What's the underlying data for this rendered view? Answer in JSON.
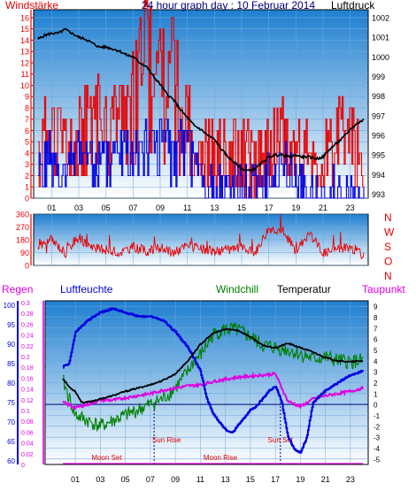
{
  "colors": {
    "red": "#e80000",
    "blue": "#0000e0",
    "green": "#008000",
    "magenta": "#e000e0",
    "black": "#000000",
    "navy": "#000080",
    "bg_top": "#1e7fd0",
    "bg_bottom": "#ffffff"
  },
  "chart_data": [
    {
      "type": "line",
      "panel": "wind-pressure",
      "title": "24 hour graph day : 10 Februar 2014",
      "left_label": "Windstärke",
      "right_label": "Luftdruck",
      "x_ticks": [
        "01",
        "03",
        "05",
        "07",
        "09",
        "11",
        "13",
        "15",
        "17",
        "19",
        "21",
        "23"
      ],
      "left_ticks": [
        "0",
        "1",
        "2",
        "3",
        "4",
        "5",
        "6",
        "7",
        "8",
        "9",
        "10",
        "11",
        "12",
        "13",
        "14",
        "15",
        "16"
      ],
      "left_range": [
        0,
        16.7
      ],
      "right_ticks": [
        "993",
        "994",
        "995",
        "996",
        "997",
        "998",
        "999",
        "1000",
        "1001",
        "1002"
      ],
      "right_range": [
        992.8,
        1002.4
      ],
      "grid": true,
      "series": [
        {
          "role": "pressure",
          "color": "black",
          "x": [
            0,
            0.5,
            1,
            1.5,
            2,
            2.5,
            3,
            3.5,
            4,
            4.5,
            5,
            5.5,
            6,
            6.5,
            7,
            7.5,
            8,
            8.5,
            9,
            9.5,
            10,
            10.5,
            11,
            11.5,
            12,
            12.5,
            13,
            13.5,
            14,
            14.5,
            15,
            15.5,
            16,
            16.5,
            17,
            17.5,
            18,
            18.5,
            19,
            19.5,
            20,
            20.5,
            21,
            21.5,
            22,
            22.5,
            23,
            23.5,
            24
          ],
          "y": [
            1000.9,
            1001.1,
            1001.2,
            1001.2,
            1001.4,
            1001.2,
            1001.0,
            1000.9,
            1000.7,
            1000.5,
            1000.5,
            1000.4,
            1000.3,
            1000.1,
            1000.0,
            999.7,
            999.5,
            999.0,
            998.6,
            998.1,
            997.8,
            997.3,
            996.9,
            996.5,
            996.3,
            996.0,
            995.8,
            995.3,
            994.9,
            994.6,
            994.3,
            994.2,
            994.3,
            994.6,
            994.9,
            995.0,
            995.0,
            994.9,
            995.0,
            994.9,
            994.9,
            994.8,
            994.9,
            995.3,
            995.6,
            995.9,
            996.3,
            996.6,
            996.8
          ]
        },
        {
          "role": "gust",
          "color": "red",
          "x": [
            0,
            1,
            2,
            3,
            4,
            5,
            6,
            7,
            7.5,
            8,
            8.5,
            9,
            9.5,
            10,
            10.5,
            11,
            11.5,
            12,
            13,
            14,
            15,
            16,
            17,
            18,
            19,
            20,
            21,
            22,
            23,
            24
          ],
          "y": [
            4,
            7,
            5,
            6,
            9,
            7,
            8,
            10,
            13,
            16,
            11,
            13,
            9,
            15,
            6,
            8,
            5,
            5,
            3,
            4,
            4,
            3,
            4,
            7,
            5,
            3,
            4,
            5,
            6,
            2
          ]
        },
        {
          "role": "wind",
          "color": "blue",
          "x": [
            0,
            1,
            2,
            3,
            4,
            5,
            6,
            7,
            8,
            9,
            10,
            11,
            12,
            13,
            14,
            15,
            16,
            17,
            18,
            19,
            20,
            21,
            22,
            23,
            24
          ],
          "y": [
            3,
            4,
            2,
            5,
            3,
            4,
            5,
            6,
            5,
            6,
            4,
            6,
            2,
            1,
            2,
            1,
            1,
            2,
            3,
            2,
            1,
            0,
            1,
            1,
            0
          ]
        }
      ]
    },
    {
      "type": "line",
      "panel": "wind-direction",
      "left_ticks": [
        "0",
        "90",
        "180",
        "270",
        "360"
      ],
      "left_range": [
        0,
        360
      ],
      "right_labels": [
        "N",
        "W",
        "S",
        "O",
        "N"
      ],
      "series": [
        {
          "role": "direction",
          "color": "red",
          "x": [
            0,
            1,
            2,
            3,
            4,
            5,
            6,
            7,
            8,
            9,
            10,
            11,
            12,
            13,
            14,
            15,
            16,
            17,
            18,
            19,
            20,
            21,
            22,
            23,
            24
          ],
          "y": [
            130,
            180,
            90,
            200,
            120,
            110,
            90,
            130,
            100,
            120,
            90,
            140,
            110,
            100,
            110,
            120,
            90,
            260,
            250,
            100,
            230,
            90,
            110,
            130,
            70
          ]
        }
      ]
    },
    {
      "type": "line",
      "panel": "weather",
      "labels": {
        "regen": "Regen",
        "luftfeuchte": "Luftfeuchte",
        "windchill": "Windchill",
        "temperatur": "Temperatur",
        "taupunkt": "Taupunkt"
      },
      "humidity_ticks": [
        "60",
        "65",
        "70",
        "75",
        "80",
        "85",
        "90",
        "95",
        "100"
      ],
      "humidity_range": [
        59,
        101
      ],
      "rain_ticks": [
        "0",
        "0.02",
        "0.04",
        "0.06",
        "0.08",
        "0.1",
        "0.12",
        "0.14",
        "0.16",
        "0.18",
        "0.2",
        "0.22",
        "0.24",
        "0.26",
        "0.28",
        "0.3"
      ],
      "rain_range": [
        0,
        0.3
      ],
      "temp_ticks": [
        "-5",
        "-4",
        "-3",
        "-2",
        "-1",
        "0",
        "1",
        "2",
        "3",
        "4",
        "5",
        "6",
        "7",
        "8",
        "9"
      ],
      "temp_range": [
        -5.5,
        9.5
      ],
      "x_ticks": [
        "01",
        "03",
        "05",
        "07",
        "09",
        "11",
        "13",
        "15",
        "17",
        "19",
        "21",
        "23"
      ],
      "annotations": {
        "sun_rise": "Sun Rise",
        "sun_set": "Sun Set",
        "moon_set": "Moon Set",
        "moon_rise": "Moon Rise"
      },
      "events": {
        "sun_rise": 7.3,
        "sun_set": 17.4,
        "moon_set": 3.5,
        "moon_rise": 12.6
      },
      "series": [
        {
          "role": "humidity",
          "color": "blue",
          "x": [
            0,
            0.5,
            1,
            2,
            3,
            4,
            5,
            6,
            7,
            8,
            9,
            10,
            11,
            11.5,
            12,
            12.5,
            13,
            13.5,
            14,
            15,
            15.5,
            16,
            16.5,
            17,
            17.5,
            18,
            18.5,
            19,
            19.5,
            20,
            21,
            22,
            23,
            24
          ],
          "y": [
            84,
            85,
            93,
            96,
            98,
            99,
            98,
            97,
            97,
            96,
            93,
            89,
            83,
            76,
            72,
            70,
            68,
            67,
            69,
            73,
            74,
            76,
            78,
            79,
            75,
            66,
            63,
            62,
            66,
            75,
            78,
            80,
            82,
            83
          ]
        },
        {
          "role": "temperature",
          "color": "black",
          "x": [
            0,
            0.5,
            1,
            1.5,
            2,
            3,
            4,
            5,
            6,
            7,
            8,
            9,
            10,
            11,
            12,
            13,
            14,
            15,
            16,
            17,
            18,
            19,
            20,
            21,
            22,
            23,
            24
          ],
          "y": [
            2.4,
            1.6,
            1.2,
            0.2,
            0.2,
            0.5,
            0.8,
            1.2,
            1.5,
            1.8,
            2.2,
            2.8,
            4.0,
            5.5,
            6.5,
            6.9,
            6.8,
            6.2,
            5.4,
            5.2,
            5.6,
            5.2,
            4.8,
            4.3,
            4.0,
            3.9,
            4.0
          ]
        },
        {
          "role": "windchill",
          "color": "green",
          "x": [
            0,
            1,
            2,
            3,
            4,
            5,
            6,
            7,
            8,
            9,
            10,
            10.5,
            11,
            12,
            13,
            14,
            15,
            16,
            17,
            18,
            19,
            20,
            21,
            22,
            23,
            24
          ],
          "y": [
            2.2,
            -1.0,
            -1.5,
            -2.0,
            -1.5,
            -1.0,
            -0.5,
            0,
            0.5,
            1.5,
            3.0,
            4.0,
            4.5,
            6.4,
            6.9,
            6.8,
            6.2,
            5.4,
            5.2,
            5.0,
            4.6,
            4.2,
            4.3,
            4.0,
            3.9,
            4.0
          ]
        },
        {
          "role": "dewpoint",
          "color": "magenta",
          "x": [
            0,
            1,
            2,
            3,
            4,
            5,
            6,
            7,
            8,
            9,
            10,
            11,
            12,
            13,
            14,
            15,
            16,
            17,
            18,
            19,
            20,
            21,
            22,
            23,
            24
          ],
          "y": [
            0.2,
            -0.3,
            0,
            0.4,
            0.4,
            0.6,
            0.8,
            1.0,
            1.3,
            1.5,
            1.7,
            1.8,
            2.1,
            2.3,
            2.5,
            2.6,
            2.7,
            2.8,
            0.3,
            -0.2,
            0.5,
            0.8,
            1.0,
            1.2,
            1.5
          ]
        },
        {
          "role": "rain",
          "color": "magenta",
          "x": [
            0,
            24
          ],
          "y": [
            0,
            0
          ]
        }
      ]
    }
  ]
}
